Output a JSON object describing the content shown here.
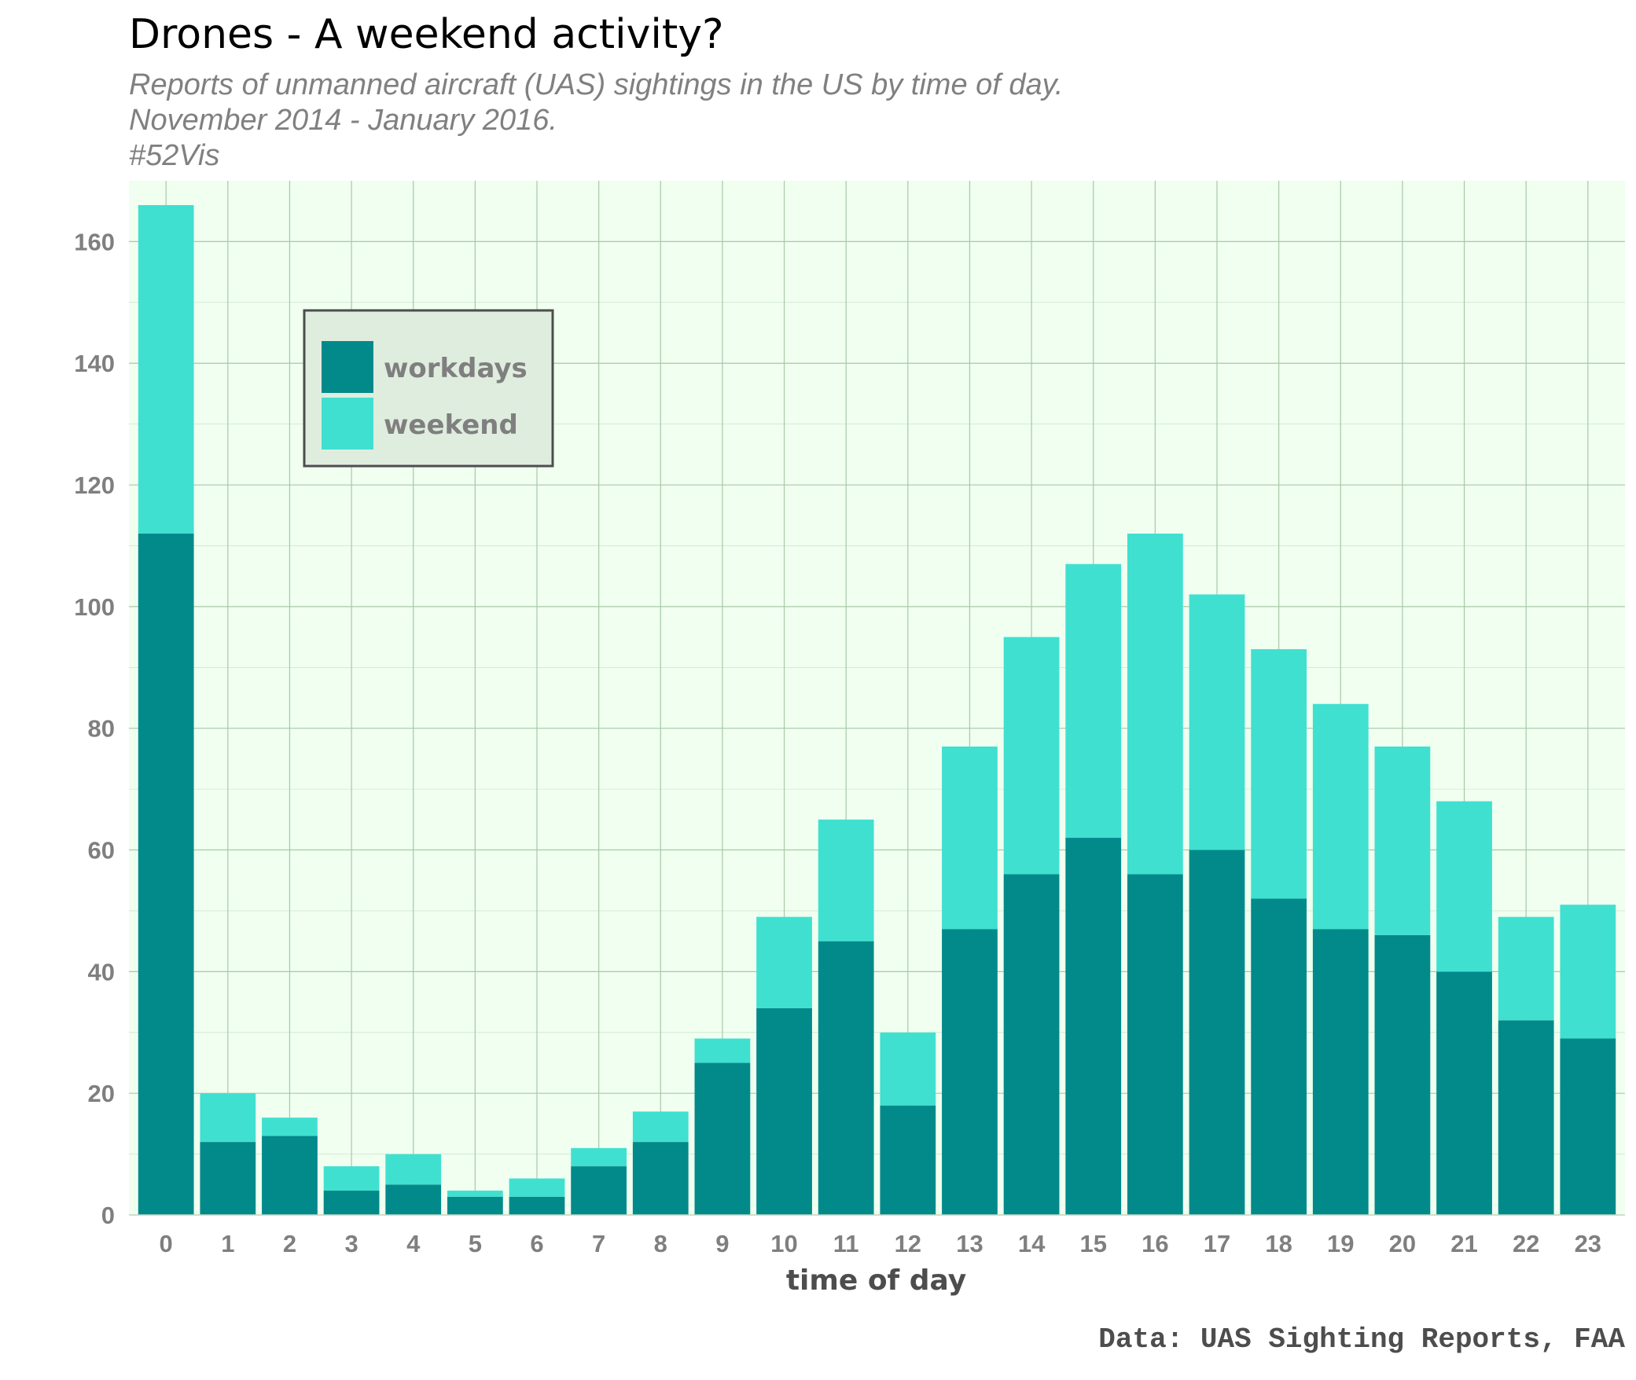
{
  "title": "Drones - A weekend activity?",
  "subtitle_lines": [
    "Reports of unmanned aircraft (UAS) sightings in the US by time of day.",
    "November 2014 - January 2016.",
    "#52Vis"
  ],
  "caption": "Data: UAS Sighting Reports, FAA",
  "colors": {
    "workdays": "#028A8A",
    "weekend": "#40E0D0",
    "panel_background": "#F0FFF0",
    "grid": "#A8C8A8",
    "legend_background": "#DFEDDF",
    "legend_border": "#4D4D4D"
  },
  "chart_data": {
    "type": "bar",
    "stacked": true,
    "title": "Drones - A weekend activity?",
    "xlabel": "time of day",
    "ylabel": "",
    "categories": [
      "0",
      "1",
      "2",
      "3",
      "4",
      "5",
      "6",
      "7",
      "8",
      "9",
      "10",
      "11",
      "12",
      "13",
      "14",
      "15",
      "16",
      "17",
      "18",
      "19",
      "20",
      "21",
      "22",
      "23"
    ],
    "series": [
      {
        "name": "workdays",
        "values": [
          112,
          12,
          13,
          4,
          5,
          3,
          3,
          8,
          12,
          25,
          34,
          45,
          18,
          47,
          56,
          62,
          56,
          60,
          52,
          47,
          46,
          40,
          32,
          29
        ]
      },
      {
        "name": "weekend",
        "values": [
          54,
          8,
          3,
          4,
          5,
          1,
          3,
          3,
          5,
          4,
          15,
          20,
          12,
          30,
          39,
          45,
          56,
          42,
          41,
          37,
          31,
          28,
          17,
          22
        ]
      }
    ],
    "ylim": [
      0,
      170
    ],
    "yticks": [
      0,
      20,
      40,
      60,
      80,
      100,
      120,
      140,
      160
    ],
    "grid": true,
    "legend": "top-left"
  }
}
